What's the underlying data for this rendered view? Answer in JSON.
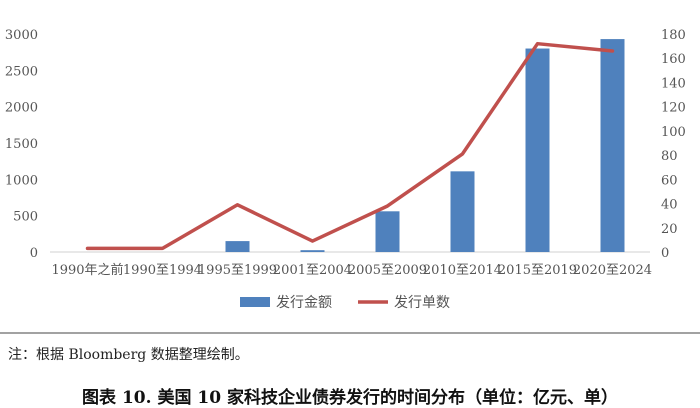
{
  "chart_data": {
    "type": "bar+line",
    "categories": [
      "1990年之前",
      "1990至1994",
      "1995至1999",
      "2001至2004",
      "2005至2009",
      "2010至2014",
      "2015至2019",
      "2020至2024"
    ],
    "series": [
      {
        "name": "发行金额",
        "type": "bar",
        "axis": "left",
        "color": "#4f81bd",
        "values": [
          0,
          0,
          150,
          25,
          560,
          1110,
          2800,
          2930
        ]
      },
      {
        "name": "发行单数",
        "type": "line",
        "axis": "right",
        "color": "#c0504d",
        "values": [
          3,
          3,
          39,
          9,
          38,
          81,
          172,
          166
        ]
      }
    ],
    "y_left": {
      "min": 0,
      "max": 3000,
      "ticks": [
        0,
        500,
        1000,
        1500,
        2000,
        2500,
        3000
      ]
    },
    "y_right": {
      "min": 0,
      "max": 180,
      "ticks": [
        0,
        20,
        40,
        60,
        80,
        100,
        120,
        140,
        160,
        180
      ]
    },
    "legend_position": "bottom",
    "grid": false
  },
  "note": "注：根据 Bloomberg 数据整理绘制。",
  "caption": "图表 10. 美国 10 家科技企业债券发行的时间分布（单位：亿元、单）"
}
